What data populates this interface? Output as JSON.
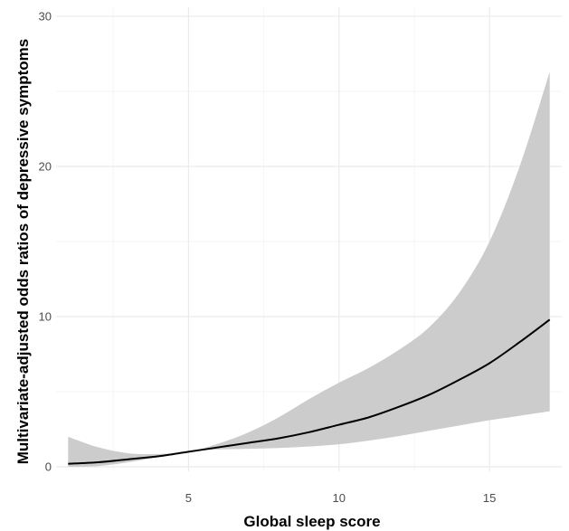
{
  "chart_data": {
    "type": "line",
    "title": "",
    "xlabel": "Global sleep score",
    "ylabel": "Multivariate-adjusted odds ratios of depressive symptoms",
    "xlim": [
      0.6,
      17.4
    ],
    "ylim": [
      -0.3,
      30.6
    ],
    "x_ticks": [
      5,
      10,
      15
    ],
    "x_tick_labels": [
      "5",
      "10",
      "15"
    ],
    "y_ticks": [
      0,
      10,
      20,
      30
    ],
    "y_tick_labels": [
      "0",
      "10",
      "20",
      "30"
    ],
    "grid": true,
    "legend": "none",
    "colors": {
      "line": "#000000",
      "band": "#cccccc",
      "grid_major": "#ebebeb",
      "grid_minor": "#f5f5f5",
      "tick_text": "#4d4d4d"
    },
    "series": [
      {
        "x": [
          1,
          2,
          3,
          4,
          5,
          6,
          7,
          8,
          9,
          10,
          11,
          12,
          13,
          14,
          15,
          16,
          17
        ],
        "y": [
          0.2,
          0.3,
          0.5,
          0.7,
          1.0,
          1.3,
          1.6,
          1.9,
          2.3,
          2.8,
          3.3,
          4.0,
          4.8,
          5.8,
          6.9,
          8.3,
          9.8
        ],
        "lower": [
          0.0,
          0.05,
          0.3,
          0.65,
          1.0,
          1.15,
          1.2,
          1.25,
          1.35,
          1.5,
          1.75,
          2.05,
          2.4,
          2.75,
          3.1,
          3.4,
          3.7
        ],
        "upper": [
          2.0,
          1.3,
          0.9,
          0.85,
          1.0,
          1.55,
          2.3,
          3.3,
          4.5,
          5.6,
          6.6,
          7.8,
          9.3,
          11.6,
          15.0,
          20.0,
          26.3
        ]
      }
    ]
  }
}
